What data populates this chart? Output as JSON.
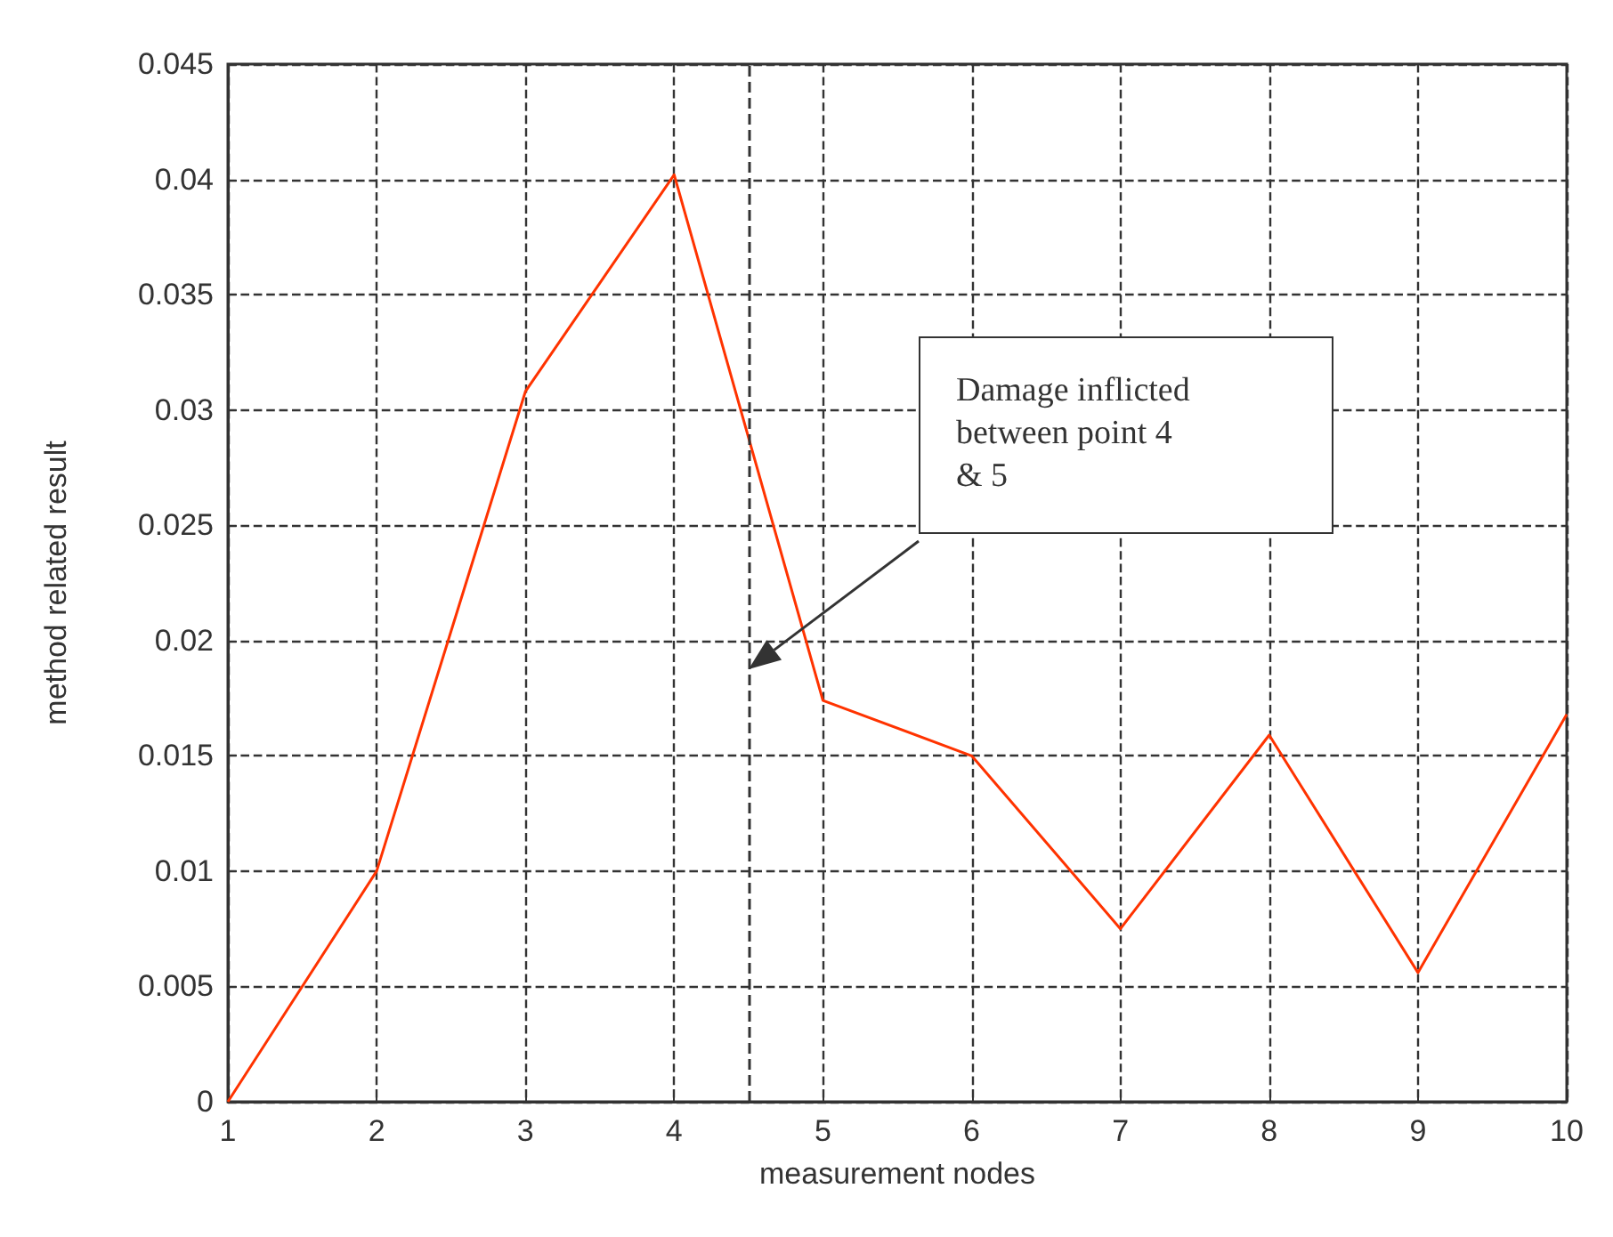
{
  "chart_data": {
    "type": "line",
    "xlabel": "measurement nodes",
    "ylabel": "method related result",
    "x": [
      1,
      2,
      3,
      4,
      5,
      6,
      7,
      8,
      9,
      10
    ],
    "series": [
      {
        "color": "#ff3300",
        "values": [
          0,
          0.01,
          0.0308,
          0.0402,
          0.0174,
          0.015,
          0.0075,
          0.0159,
          0.0056,
          0.0168
        ]
      }
    ],
    "xlim": [
      1,
      10
    ],
    "xticks": [
      1,
      2,
      3,
      4,
      5,
      6,
      7,
      8,
      9,
      10
    ],
    "ylim": [
      0,
      0.045
    ],
    "yticks": [
      0,
      0.005,
      0.01,
      0.015,
      0.02,
      0.025,
      0.03,
      0.035,
      0.04,
      0.045
    ],
    "grid": true,
    "marker": "none",
    "line_style": "solid",
    "ref_lines": [
      {
        "axis": "x",
        "value": 4.5,
        "line_style": "dashed",
        "color": "#333333"
      }
    ],
    "annotations": [
      "Damage inflicted\nbetween point 4\n& 5"
    ]
  }
}
